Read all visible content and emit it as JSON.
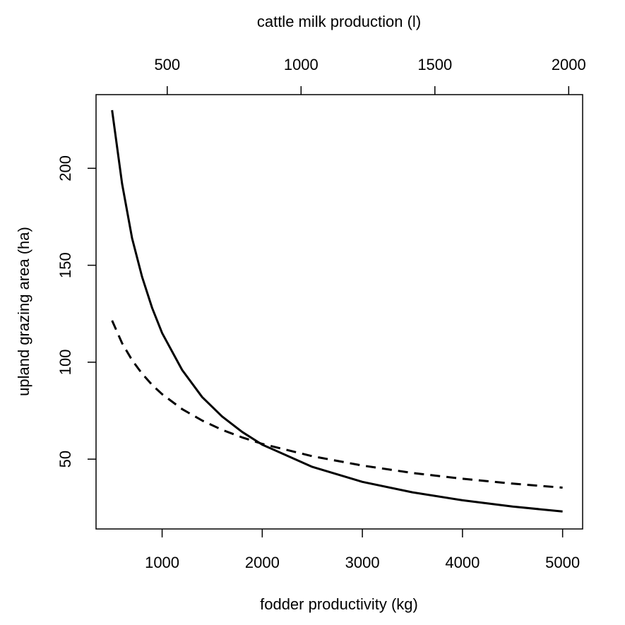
{
  "chart_data": {
    "type": "line",
    "title": "",
    "xlabel": "fodder productivity (kg)",
    "ylabel": "upland grazing area (ha)",
    "x2label": "cattle milk production (l)",
    "xlim": [
      340,
      5200
    ],
    "ylim": [
      14,
      238
    ],
    "x2lim": [
      234,
      2052
    ],
    "xticks": [
      1000,
      2000,
      3000,
      4000,
      5000
    ],
    "yticks": [
      50,
      100,
      150,
      200
    ],
    "x2ticks": [
      500,
      1000,
      1500,
      2000
    ],
    "grid": false,
    "legend": "none",
    "series": [
      {
        "style": "solid",
        "color": "#000000",
        "x": [
          500,
          600,
          700,
          800,
          900,
          1000,
          1200,
          1400,
          1600,
          1800,
          2000,
          2500,
          3000,
          3500,
          4000,
          4500,
          5000
        ],
        "y": [
          230,
          192,
          164,
          144,
          128,
          115,
          96,
          82,
          72,
          64,
          57.5,
          46,
          38.3,
          32.9,
          28.8,
          25.6,
          23
        ]
      },
      {
        "style": "dashed",
        "color": "#000000",
        "x": [
          500,
          600,
          700,
          800,
          900,
          1000,
          1200,
          1400,
          1600,
          1800,
          2000,
          2500,
          3000,
          3500,
          4000,
          4500,
          5000
        ],
        "y": [
          121.5,
          109.8,
          101.1,
          94.1,
          88.3,
          83.5,
          75.8,
          69.9,
          65.1,
          61.2,
          57.9,
          51.5,
          46.7,
          42.9,
          39.9,
          37.4,
          35.3
        ]
      }
    ]
  }
}
